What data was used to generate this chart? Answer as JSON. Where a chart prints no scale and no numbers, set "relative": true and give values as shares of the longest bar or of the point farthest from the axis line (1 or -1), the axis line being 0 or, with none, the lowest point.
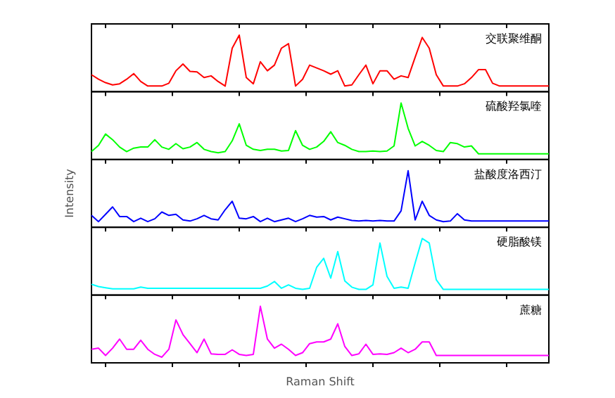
{
  "chart_data": [
    {
      "type": "line",
      "relative": true,
      "categories": [
        null,
        null,
        null,
        null,
        null,
        null,
        null,
        null,
        null,
        null,
        null,
        null,
        null,
        null,
        null,
        null,
        null,
        null,
        null,
        null,
        null,
        null,
        null,
        null,
        null,
        null,
        null,
        null,
        null,
        null,
        null,
        null,
        null,
        null,
        null,
        null,
        null,
        null,
        null,
        null,
        null,
        null,
        null,
        null,
        null,
        null,
        null,
        null,
        null,
        null,
        null,
        null,
        null,
        null,
        null,
        null,
        null,
        null,
        null,
        null,
        null,
        null,
        null,
        null,
        null,
        null
      ],
      "series": [
        {
          "name": "交联聚维酮",
          "color": "#ff0000",
          "values": [
            0.3,
            0.22,
            0.16,
            0.12,
            0.14,
            0.22,
            0.32,
            0.18,
            0.1,
            0.1,
            0.1,
            0.15,
            0.37,
            0.49,
            0.36,
            0.35,
            0.25,
            0.28,
            0.18,
            0.1,
            0.77,
            1,
            0.25,
            0.14,
            0.53,
            0.37,
            0.47,
            0.77,
            0.85,
            0.1,
            0.22,
            0.47,
            0.42,
            0.37,
            0.31,
            0.37,
            0.1,
            0.12,
            0.3,
            0.47,
            0.14,
            0.37,
            0.37,
            0.22,
            0.28,
            0.25,
            0.61,
            0.96,
            0.77,
            0.3,
            0.1,
            0.1,
            0.1,
            0.14,
            0.25,
            0.39,
            0.39,
            0.15,
            0.1,
            0.1,
            0.1,
            0.1,
            0.1,
            0.1,
            0.1,
            0.1
          ]
        }
      ]
    },
    {
      "type": "line",
      "relative": true,
      "categories": [
        null,
        null,
        null,
        null,
        null,
        null,
        null,
        null,
        null,
        null,
        null,
        null,
        null,
        null,
        null,
        null,
        null,
        null,
        null,
        null,
        null,
        null,
        null,
        null,
        null,
        null,
        null,
        null,
        null,
        null,
        null,
        null,
        null,
        null,
        null,
        null,
        null,
        null,
        null,
        null,
        null,
        null,
        null,
        null,
        null,
        null,
        null,
        null,
        null,
        null,
        null,
        null,
        null,
        null,
        null,
        null,
        null,
        null,
        null,
        null,
        null,
        null,
        null,
        null,
        null,
        null
      ],
      "series": [
        {
          "name": "硫酸羟氯喹",
          "color": "#00ff00",
          "values": [
            0.14,
            0.25,
            0.45,
            0.35,
            0.22,
            0.14,
            0.2,
            0.22,
            0.22,
            0.35,
            0.22,
            0.18,
            0.28,
            0.19,
            0.22,
            0.3,
            0.18,
            0.14,
            0.12,
            0.14,
            0.33,
            0.63,
            0.25,
            0.18,
            0.16,
            0.18,
            0.18,
            0.15,
            0.16,
            0.51,
            0.25,
            0.18,
            0.22,
            0.32,
            0.49,
            0.3,
            0.25,
            0.18,
            0.14,
            0.14,
            0.15,
            0.14,
            0.15,
            0.24,
            1,
            0.55,
            0.24,
            0.32,
            0.25,
            0.16,
            0.14,
            0.3,
            0.28,
            0.22,
            0.24,
            0.1,
            0.1,
            0.1,
            0.1,
            0.1,
            0.1,
            0.1,
            0.1,
            0.1,
            0.1,
            0.1
          ]
        }
      ]
    },
    {
      "type": "line",
      "relative": true,
      "ylabel": "Intensity",
      "categories": [
        null,
        null,
        null,
        null,
        null,
        null,
        null,
        null,
        null,
        null,
        null,
        null,
        null,
        null,
        null,
        null,
        null,
        null,
        null,
        null,
        null,
        null,
        null,
        null,
        null,
        null,
        null,
        null,
        null,
        null,
        null,
        null,
        null,
        null,
        null,
        null,
        null,
        null,
        null,
        null,
        null,
        null,
        null,
        null,
        null,
        null,
        null,
        null,
        null,
        null,
        null,
        null,
        null,
        null,
        null,
        null,
        null,
        null,
        null,
        null,
        null,
        null,
        null,
        null,
        null,
        null
      ],
      "series": [
        {
          "name": "盐酸度洛西汀",
          "color": "#0000ff",
          "values": [
            0.21,
            0.1,
            0.23,
            0.36,
            0.19,
            0.19,
            0.1,
            0.16,
            0.1,
            0.15,
            0.27,
            0.21,
            0.23,
            0.13,
            0.11,
            0.15,
            0.21,
            0.15,
            0.13,
            0.31,
            0.46,
            0.16,
            0.15,
            0.19,
            0.1,
            0.16,
            0.1,
            0.13,
            0.16,
            0.1,
            0.15,
            0.21,
            0.18,
            0.19,
            0.13,
            0.18,
            0.15,
            0.12,
            0.11,
            0.12,
            0.11,
            0.12,
            0.11,
            0.11,
            0.29,
            1,
            0.13,
            0.46,
            0.21,
            0.13,
            0.1,
            0.11,
            0.24,
            0.13,
            0.11,
            0.11,
            0.11,
            0.11,
            0.11,
            0.11,
            0.11,
            0.11,
            0.11,
            0.11,
            0.11,
            0.11
          ]
        }
      ]
    },
    {
      "type": "line",
      "relative": true,
      "categories": [
        null,
        null,
        null,
        null,
        null,
        null,
        null,
        null,
        null,
        null,
        null,
        null,
        null,
        null,
        null,
        null,
        null,
        null,
        null,
        null,
        null,
        null,
        null,
        null,
        null,
        null,
        null,
        null,
        null,
        null,
        null,
        null,
        null,
        null,
        null,
        null,
        null,
        null,
        null,
        null,
        null,
        null,
        null,
        null,
        null,
        null,
        null,
        null,
        null,
        null,
        null,
        null,
        null,
        null,
        null,
        null,
        null,
        null,
        null,
        null,
        null,
        null,
        null,
        null,
        null,
        null
      ],
      "series": [
        {
          "name": "硬脂酸镁",
          "color": "#00ffff",
          "values": [
            0.19,
            0.15,
            0.13,
            0.11,
            0.11,
            0.11,
            0.11,
            0.14,
            0.12,
            0.12,
            0.12,
            0.12,
            0.12,
            0.12,
            0.12,
            0.12,
            0.12,
            0.12,
            0.12,
            0.12,
            0.12,
            0.12,
            0.12,
            0.12,
            0.12,
            0.16,
            0.24,
            0.12,
            0.18,
            0.12,
            0.1,
            0.12,
            0.49,
            0.65,
            0.3,
            0.77,
            0.25,
            0.14,
            0.1,
            0.1,
            0.18,
            0.92,
            0.33,
            0.12,
            0.14,
            0.12,
            0.57,
            1,
            0.92,
            0.27,
            0.1,
            0.1,
            0.1,
            0.1,
            0.1,
            0.1,
            0.1,
            0.1,
            0.1,
            0.1,
            0.1,
            0.1,
            0.1,
            0.1,
            0.1,
            0.1
          ]
        }
      ]
    },
    {
      "type": "line",
      "relative": true,
      "xlabel": "Raman Shift",
      "categories": [
        null,
        null,
        null,
        null,
        null,
        null,
        null,
        null,
        null,
        null,
        null,
        null,
        null,
        null,
        null,
        null,
        null,
        null,
        null,
        null,
        null,
        null,
        null,
        null,
        null,
        null,
        null,
        null,
        null,
        null,
        null,
        null,
        null,
        null,
        null,
        null,
        null,
        null,
        null,
        null,
        null,
        null,
        null,
        null,
        null,
        null,
        null,
        null,
        null,
        null,
        null,
        null,
        null,
        null,
        null,
        null,
        null,
        null,
        null,
        null,
        null,
        null,
        null,
        null,
        null,
        null
      ],
      "series": [
        {
          "name": "蔗糖",
          "color": "#ff00ff",
          "values": [
            0.24,
            0.26,
            0.13,
            0.26,
            0.42,
            0.24,
            0.24,
            0.4,
            0.24,
            0.15,
            0.1,
            0.24,
            0.76,
            0.5,
            0.34,
            0.18,
            0.42,
            0.16,
            0.15,
            0.15,
            0.23,
            0.15,
            0.13,
            0.15,
            1,
            0.42,
            0.26,
            0.33,
            0.24,
            0.13,
            0.18,
            0.34,
            0.37,
            0.37,
            0.42,
            0.69,
            0.29,
            0.13,
            0.16,
            0.33,
            0.15,
            0.16,
            0.15,
            0.18,
            0.26,
            0.18,
            0.24,
            0.37,
            0.37,
            0.13,
            0.13,
            0.13,
            0.13,
            0.13,
            0.13,
            0.13,
            0.13,
            0.13,
            0.13,
            0.13,
            0.13,
            0.13,
            0.13,
            0.13,
            0.13,
            0.13
          ]
        }
      ]
    }
  ]
}
